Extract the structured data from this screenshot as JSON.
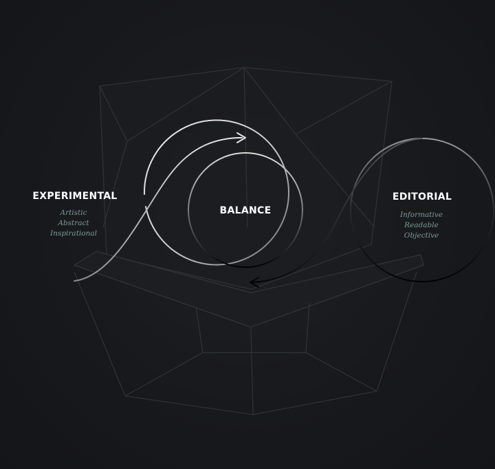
{
  "nodes": {
    "experimental": {
      "title": "EXPERIMENTAL",
      "items": [
        "Artistic",
        "Abstract",
        "Inspirational"
      ]
    },
    "balance": {
      "title": "BALANCE"
    },
    "editorial": {
      "title": "EDITORIAL",
      "items": [
        "Informative",
        "Readable",
        "Objective"
      ]
    }
  },
  "colors": {
    "background": "#17181c",
    "title_text": "#ffffff",
    "subtitle_text": "#7d9a9a",
    "stroke_light": "#e6e6e6",
    "stroke_dark": "#050506",
    "wireframe": "#3a3b40"
  },
  "icons": {
    "forward_arrow": "arrow-right-icon",
    "back_arrow": "arrow-left-icon"
  }
}
